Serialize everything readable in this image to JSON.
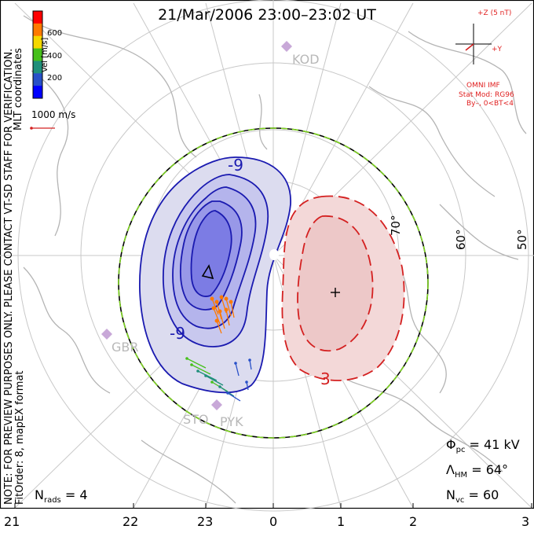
{
  "title": "21/Mar/2006 23:00–23:02 UT",
  "side_note_1": "NOTE: FOR PREVIEW PURPOSES ONLY. PLEASE CONTACT VT-SD STAFF FOR VERIFICATION.",
  "side_note_2": "FitOrder: 8, mapEX format",
  "coords": "MLT coordinates",
  "colorbar": {
    "unit": "Vel [m/s]",
    "ticks": [
      "600",
      "400",
      "200"
    ],
    "colors": [
      "#ff0000",
      "#ff7a00",
      "#f5d800",
      "#46c01a",
      "#1f8f7a",
      "#2850c8",
      "#0000ff"
    ]
  },
  "ref_vector": "1000 m/s",
  "imf": {
    "plus_z": "+Z (5 nT)",
    "plus_y": "+Y",
    "source": "OMNI IMF",
    "model": "Stat Mod: RG96",
    "cond": "By–, 0<BT<4"
  },
  "latitudes": [
    "70°",
    "60°",
    "50°"
  ],
  "mlt_labels": [
    "21",
    "22",
    "23",
    "0",
    "1",
    "2",
    "3"
  ],
  "stations": [
    "KOD",
    "GBR",
    "STO",
    "PYK"
  ],
  "contours": {
    "negative": [
      "-9",
      "-9"
    ],
    "positive": [
      "3"
    ]
  },
  "stats": {
    "phi_symbol": "Φ",
    "phi_sub": "pc",
    "phi_value": "= 41 kV",
    "lambda_symbol": "Λ",
    "lambda_sub": "HM",
    "lambda_value": "= 64°",
    "nvc_symbol": "N",
    "nvc_sub": "vc",
    "nvc_value": "= 60",
    "nrads_symbol": "N",
    "nrads_sub": "rads",
    "nrads_value": "= 4"
  }
}
